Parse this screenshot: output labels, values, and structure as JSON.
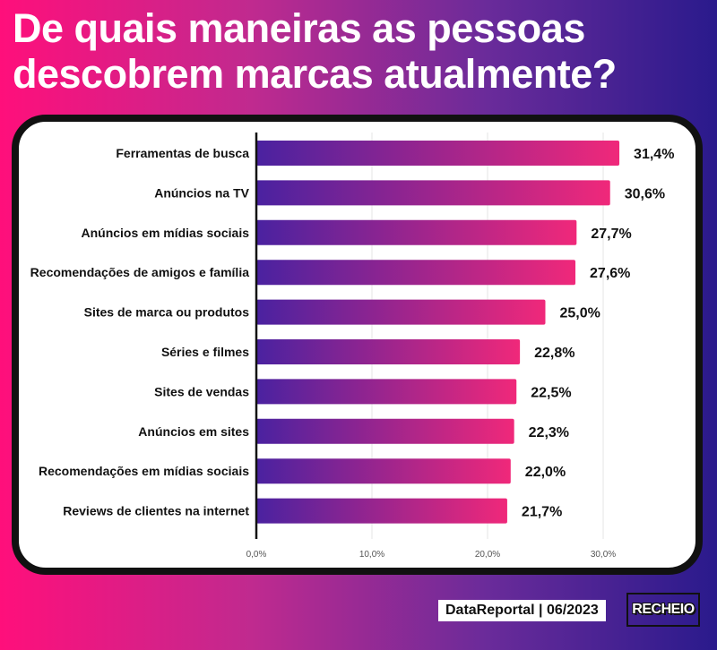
{
  "title": {
    "line1": "De quais maneiras as pessoas",
    "line2": "descobrem marcas atualmente?"
  },
  "footer": {
    "source": "DataReportal | 06/2023",
    "logo_text": "RECHEIO"
  },
  "colors": {
    "bar_start": "#4a22a0",
    "bar_end": "#f0287a",
    "gridline": "#e6e6e6",
    "axis": "#111111"
  },
  "chart_data": {
    "type": "bar",
    "orientation": "horizontal",
    "title": "",
    "xlabel": "",
    "ylabel": "",
    "xlim": [
      0,
      32
    ],
    "grid": true,
    "categories": [
      "Ferramentas de busca",
      "Anúncios na TV",
      "Anúncios em mídias sociais",
      "Recomendações de amigos e família",
      "Sites de marca ou produtos",
      "Séries e filmes",
      "Sites de vendas",
      "Anúncios em sites",
      "Recomendações em mídias sociais",
      "Reviews de clientes na internet"
    ],
    "values": [
      31.4,
      30.6,
      27.7,
      27.6,
      25.0,
      22.8,
      22.5,
      22.3,
      22.0,
      21.7
    ],
    "value_labels": [
      "31,4%",
      "30,6%",
      "27,7%",
      "27,6%",
      "25,0%",
      "22,8%",
      "22,5%",
      "22,3%",
      "22,0%",
      "21,7%"
    ],
    "ticks": [
      0,
      10,
      20,
      30
    ],
    "tick_labels": [
      "0,0%",
      "10,0%",
      "20,0%",
      "30,0%"
    ]
  }
}
